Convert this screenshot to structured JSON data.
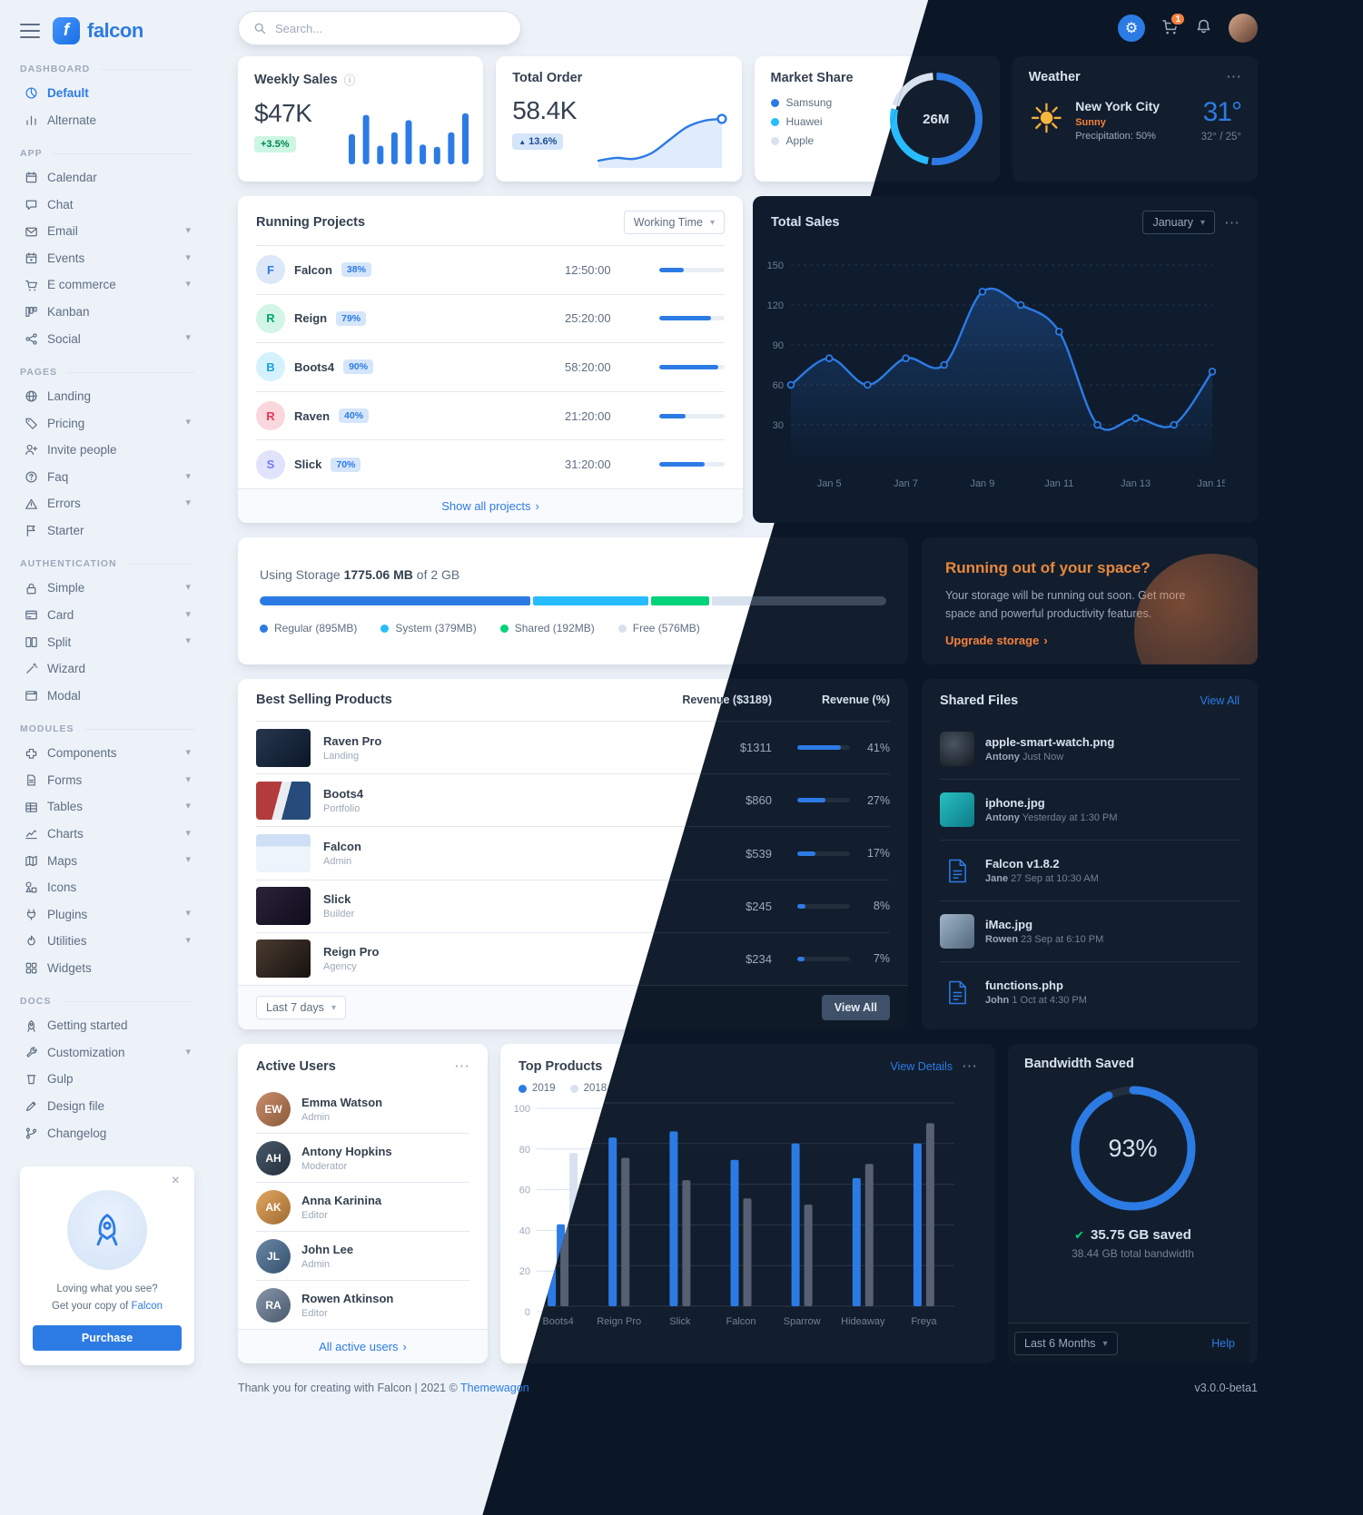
{
  "brand": {
    "name": "falcon"
  },
  "navbar": {
    "search_placeholder": "Search...",
    "cart_badge": "1"
  },
  "sidebar": {
    "sections": [
      {
        "heading": "Dashboard",
        "items": [
          {
            "label": "Default",
            "icon": "pie-chart",
            "active": true
          },
          {
            "label": "Alternate",
            "icon": "bar-chart"
          }
        ]
      },
      {
        "heading": "App",
        "items": [
          {
            "label": "Calendar",
            "icon": "calendar"
          },
          {
            "label": "Chat",
            "icon": "chat"
          },
          {
            "label": "Email",
            "icon": "email",
            "chevron": true
          },
          {
            "label": "Events",
            "icon": "events",
            "chevron": true
          },
          {
            "label": "E commerce",
            "icon": "cart",
            "chevron": true
          },
          {
            "label": "Kanban",
            "icon": "kanban"
          },
          {
            "label": "Social",
            "icon": "share",
            "chevron": true
          }
        ]
      },
      {
        "heading": "Pages",
        "items": [
          {
            "label": "Landing",
            "icon": "globe"
          },
          {
            "label": "Pricing",
            "icon": "tag",
            "chevron": true
          },
          {
            "label": "Invite people",
            "icon": "user-plus"
          },
          {
            "label": "Faq",
            "icon": "question",
            "chevron": true
          },
          {
            "label": "Errors",
            "icon": "warning",
            "chevron": true
          },
          {
            "label": "Starter",
            "icon": "flag"
          }
        ]
      },
      {
        "heading": "Authentication",
        "items": [
          {
            "label": "Simple",
            "icon": "lock",
            "chevron": true
          },
          {
            "label": "Card",
            "icon": "card",
            "chevron": true
          },
          {
            "label": "Split",
            "icon": "split",
            "chevron": true
          },
          {
            "label": "Wizard",
            "icon": "wand"
          },
          {
            "label": "Modal",
            "icon": "modal"
          }
        ]
      },
      {
        "heading": "Modules",
        "items": [
          {
            "label": "Components",
            "icon": "puzzle",
            "chevron": true
          },
          {
            "label": "Forms",
            "icon": "file-text",
            "chevron": true
          },
          {
            "label": "Tables",
            "icon": "table",
            "chevron": true
          },
          {
            "label": "Charts",
            "icon": "chart-line",
            "chevron": true
          },
          {
            "label": "Maps",
            "icon": "map",
            "chevron": true
          },
          {
            "label": "Icons",
            "icon": "shapes"
          },
          {
            "label": "Plugins",
            "icon": "plug",
            "chevron": true
          },
          {
            "label": "Utilities",
            "icon": "fire",
            "chevron": true
          },
          {
            "label": "Widgets",
            "icon": "widgets"
          }
        ]
      },
      {
        "heading": "Docs",
        "items": [
          {
            "label": "Getting started",
            "icon": "rocket"
          },
          {
            "label": "Customization",
            "icon": "wrench",
            "chevron": true
          },
          {
            "label": "Gulp",
            "icon": "gulp"
          },
          {
            "label": "Design file",
            "icon": "pen"
          },
          {
            "label": "Changelog",
            "icon": "code-branch"
          }
        ]
      }
    ],
    "promo": {
      "line1": "Loving what you see?",
      "line2": "Get your copy of",
      "brand": "Falcon",
      "button": "Purchase"
    }
  },
  "cards": {
    "weekly_sales": {
      "title": "Weekly Sales",
      "value": "$47K",
      "delta": "+3.5%"
    },
    "total_order": {
      "title": "Total Order",
      "value": "58.4K",
      "delta": "13.6%"
    },
    "market_share": {
      "title": "Market Share",
      "value": "26M",
      "legend": [
        {
          "label": "Samsung",
          "color": "#2c7be5"
        },
        {
          "label": "Huawei",
          "color": "#27bcfd"
        },
        {
          "label": "Apple",
          "color": "#d8e2ef"
        }
      ]
    },
    "weather": {
      "title": "Weather",
      "city": "New York City",
      "condition": "Sunny",
      "precipitation": "Precipitation: 50%",
      "temp": "31°",
      "range": "32° / 25°"
    },
    "running_projects": {
      "title": "Running Projects",
      "filter": "Working Time",
      "footer": "Show all projects",
      "projects": [
        {
          "initial": "F",
          "name": "Falcon",
          "progress": 38,
          "time": "12:50:00",
          "color": "blue"
        },
        {
          "initial": "R",
          "name": "Reign",
          "progress": 79,
          "time": "25:20:00",
          "color": "green"
        },
        {
          "initial": "B",
          "name": "Boots4",
          "progress": 90,
          "time": "58:20:00",
          "color": "cyan"
        },
        {
          "initial": "R",
          "name": "Raven",
          "progress": 40,
          "time": "21:20:00",
          "color": "red"
        },
        {
          "initial": "S",
          "name": "Slick",
          "progress": 70,
          "time": "31:20:00",
          "color": "indigo"
        }
      ]
    },
    "total_sales": {
      "title": "Total Sales",
      "filter": "January"
    },
    "storage": {
      "prefix": "Using Storage",
      "used": "1775.06 MB",
      "middle": "of",
      "total": "2 GB",
      "segments": [
        {
          "label": "Regular (895MB)",
          "mb": 895,
          "color": "#2c7be5"
        },
        {
          "label": "System (379MB)",
          "mb": 379,
          "color": "#27bcfd"
        },
        {
          "label": "Shared (192MB)",
          "mb": 192,
          "color": "#00d27a"
        },
        {
          "label": "Free (576MB)",
          "mb": 576,
          "color": "#d8e2ef"
        }
      ]
    },
    "space": {
      "title": "Running out of your space?",
      "body": "Your storage will be running out soon. Get more space and powerful productivity features.",
      "link": "Upgrade storage"
    },
    "best_selling": {
      "title": "Best Selling Products",
      "col_revenue": "Revenue ($3189)",
      "col_percent": "Revenue (%)",
      "filter": "Last 7 days",
      "view_all": "View All",
      "products": [
        {
          "name": "Raven Pro",
          "category": "Landing",
          "revenue": "$1311",
          "percent": 41,
          "thumb": "raven"
        },
        {
          "name": "Boots4",
          "category": "Portfolio",
          "revenue": "$860",
          "percent": 27,
          "thumb": "boots4"
        },
        {
          "name": "Falcon",
          "category": "Admin",
          "revenue": "$539",
          "percent": 17,
          "thumb": "falcon"
        },
        {
          "name": "Slick",
          "category": "Builder",
          "revenue": "$245",
          "percent": 8,
          "thumb": "slick"
        },
        {
          "name": "Reign Pro",
          "category": "Agency",
          "revenue": "$234",
          "percent": 7,
          "thumb": "reign"
        }
      ]
    },
    "shared_files": {
      "title": "Shared Files",
      "view_all": "View All",
      "files": [
        {
          "name": "apple-smart-watch.png",
          "by": "Antony",
          "time": "Just Now",
          "thumb": "watch"
        },
        {
          "name": "iphone.jpg",
          "by": "Antony",
          "time": "Yesterday at 1:30 PM",
          "thumb": "iphone"
        },
        {
          "name": "Falcon v1.8.2",
          "by": "Jane",
          "time": "27 Sep at 10:30 AM",
          "thumb": "doc"
        },
        {
          "name": "iMac.jpg",
          "by": "Rowen",
          "time": "23 Sep at 6:10 PM",
          "thumb": "imac"
        },
        {
          "name": "functions.php",
          "by": "John",
          "time": "1 Oct at 4:30 PM",
          "thumb": "doc"
        }
      ]
    },
    "active_users": {
      "title": "Active Users",
      "footer": "All active users",
      "users": [
        {
          "name": "Emma Watson",
          "role": "Admin"
        },
        {
          "name": "Antony Hopkins",
          "role": "Moderator"
        },
        {
          "name": "Anna Karinina",
          "role": "Editor"
        },
        {
          "name": "John Lee",
          "role": "Admin"
        },
        {
          "name": "Rowen Atkinson",
          "role": "Editor"
        }
      ]
    },
    "top_products": {
      "title": "Top Products",
      "view_details": "View Details",
      "legend": [
        "2019",
        "2018"
      ]
    },
    "bandwidth": {
      "title": "Bandwidth Saved",
      "percent": "93%",
      "saved": "35.75 GB saved",
      "total": "38.44 GB total bandwidth",
      "filter": "Last 6 Months",
      "help": "Help"
    }
  },
  "footer": {
    "prefix": "Thank you for creating with Falcon | 2021 © ",
    "brand": "Themewagon",
    "version": "v3.0.0-beta1"
  },
  "chart_data": [
    {
      "name": "weekly_sales",
      "type": "bar",
      "values": [
        52,
        85,
        32,
        55,
        76,
        34,
        30,
        55,
        88
      ],
      "ylim": [
        0,
        100
      ],
      "color": "#2c7be5",
      "title": "Weekly Sales sparkbars"
    },
    {
      "name": "total_order",
      "type": "area",
      "values": [
        18,
        21,
        20,
        26,
        40,
        54,
        61,
        63
      ],
      "color": "#2c7be5",
      "title": "Total Order trend"
    },
    {
      "name": "market_share",
      "type": "pie",
      "labels": [
        "Samsung",
        "Huawei",
        "Apple"
      ],
      "values": [
        53,
        27,
        20
      ],
      "colors": [
        "#2c7be5",
        "#27bcfd",
        "#d8e2ef"
      ],
      "center_label": "26M",
      "title": "Market Share"
    },
    {
      "name": "total_sales",
      "type": "line",
      "x": [
        "Jan 4",
        "Jan 5",
        "Jan 6",
        "Jan 7",
        "Jan 8",
        "Jan 9",
        "Jan 10",
        "Jan 11",
        "Jan 12",
        "Jan 13",
        "Jan 14",
        "Jan 15"
      ],
      "x_ticks": [
        "Jan 5",
        "Jan 7",
        "Jan 9",
        "Jan 11",
        "Jan 13",
        "Jan 15"
      ],
      "values": [
        60,
        80,
        60,
        80,
        75,
        130,
        120,
        100,
        30,
        35,
        30,
        70
      ],
      "ylim": [
        0,
        150
      ],
      "yticks": [
        30,
        60,
        90,
        120,
        150
      ],
      "color": "#2c7be5",
      "title": "Total Sales - January"
    },
    {
      "name": "top_products",
      "type": "bar",
      "categories": [
        "Boots4",
        "Reign Pro",
        "Slick",
        "Falcon",
        "Sparrow",
        "Hideaway",
        "Freya"
      ],
      "series": [
        {
          "name": "2019",
          "values": [
            43,
            83,
            86,
            72,
            80,
            63,
            80
          ],
          "color": "#2c7be5"
        },
        {
          "name": "2018",
          "values": [
            78,
            73,
            62,
            53,
            50,
            70,
            90
          ],
          "color": "#d8e2ef"
        }
      ],
      "ylim": [
        0,
        100
      ],
      "yticks": [
        0,
        20,
        40,
        60,
        80,
        100
      ],
      "title": "Top Products"
    },
    {
      "name": "bandwidth_saved",
      "type": "ring",
      "value": 93,
      "color": "#2c7be5",
      "title": "Bandwidth Saved"
    }
  ]
}
